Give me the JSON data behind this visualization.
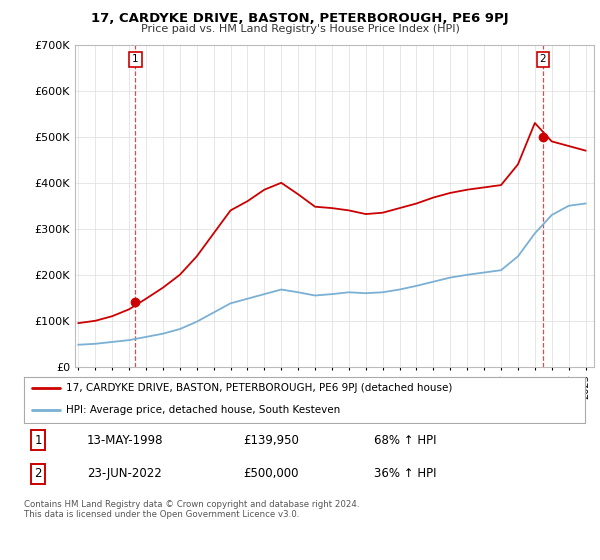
{
  "title": "17, CARDYKE DRIVE, BASTON, PETERBOROUGH, PE6 9PJ",
  "subtitle": "Price paid vs. HM Land Registry's House Price Index (HPI)",
  "legend_line1": "17, CARDYKE DRIVE, BASTON, PETERBOROUGH, PE6 9PJ (detached house)",
  "legend_line2": "HPI: Average price, detached house, South Kesteven",
  "table_row1": [
    "1",
    "13-MAY-1998",
    "£139,950",
    "68% ↑ HPI"
  ],
  "table_row2": [
    "2",
    "23-JUN-2022",
    "£500,000",
    "36% ↑ HPI"
  ],
  "footer": "Contains HM Land Registry data © Crown copyright and database right 2024.\nThis data is licensed under the Open Government Licence v3.0.",
  "sale1_year": 1998.37,
  "sale1_price": 139950,
  "sale2_year": 2022.48,
  "sale2_price": 500000,
  "red_color": "#cc0000",
  "blue_color": "#7ab0d4",
  "ylim": [
    0,
    700000
  ],
  "xlim_start": 1994.8,
  "xlim_end": 2025.5,
  "background_color": "#ffffff",
  "plot_bg_color": "#ffffff",
  "grid_color": "#dddddd",
  "hpi_years": [
    1995,
    1996,
    1997,
    1998,
    1999,
    2000,
    2001,
    2002,
    2003,
    2004,
    2005,
    2006,
    2007,
    2008,
    2009,
    2010,
    2011,
    2012,
    2013,
    2014,
    2015,
    2016,
    2017,
    2018,
    2019,
    2020,
    2021,
    2022,
    2023,
    2024,
    2025
  ],
  "hpi_values": [
    48000,
    50000,
    54000,
    58000,
    65000,
    72000,
    82000,
    98000,
    118000,
    138000,
    148000,
    158000,
    168000,
    162000,
    155000,
    158000,
    162000,
    160000,
    162000,
    168000,
    176000,
    185000,
    194000,
    200000,
    205000,
    210000,
    240000,
    290000,
    330000,
    350000,
    355000
  ],
  "prop_years": [
    1995,
    1996,
    1997,
    1998,
    1999,
    2000,
    2001,
    2002,
    2003,
    2004,
    2005,
    2006,
    2007,
    2008,
    2009,
    2010,
    2011,
    2012,
    2013,
    2014,
    2015,
    2016,
    2017,
    2018,
    2019,
    2020,
    2021,
    2022,
    2023,
    2024,
    2025
  ],
  "prop_values": [
    95000,
    100000,
    110000,
    125000,
    148000,
    172000,
    200000,
    240000,
    290000,
    340000,
    360000,
    385000,
    400000,
    375000,
    348000,
    345000,
    340000,
    332000,
    335000,
    345000,
    355000,
    368000,
    378000,
    385000,
    390000,
    395000,
    440000,
    530000,
    490000,
    480000,
    470000
  ]
}
